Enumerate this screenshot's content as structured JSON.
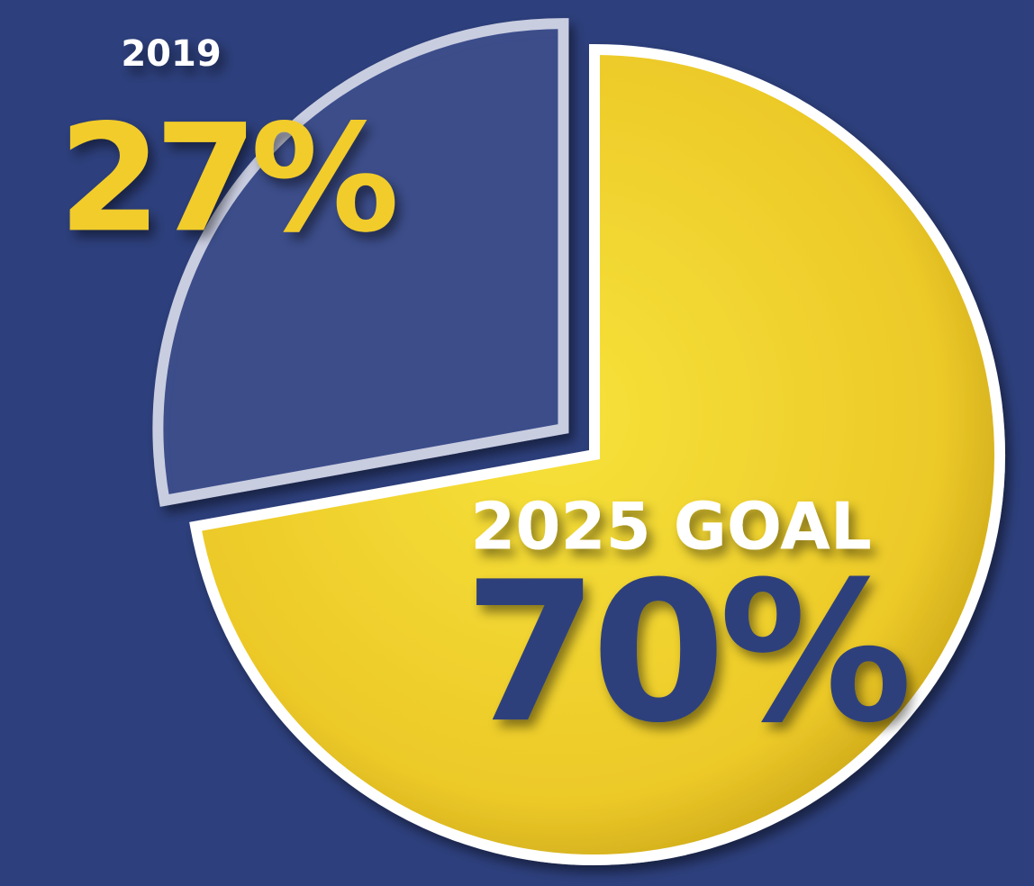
{
  "chart_data": {
    "type": "pie",
    "categories": [
      "2019",
      "2025 GOAL"
    ],
    "values": [
      27,
      70
    ],
    "value_labels": [
      "27%",
      "70%"
    ],
    "colors": [
      "#3d4f8e",
      "#f2d230"
    ],
    "label_colors": [
      "#f2cc2a",
      "#2d3f7c"
    ]
  }
}
